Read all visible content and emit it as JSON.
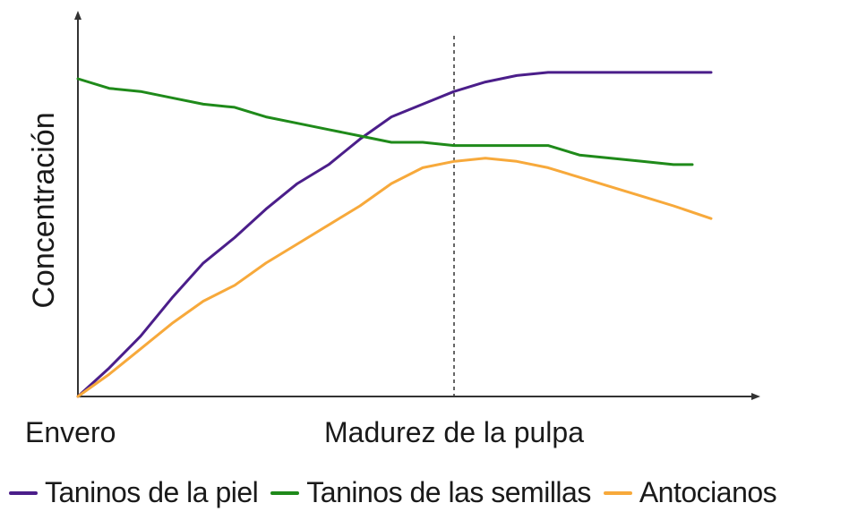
{
  "chart_data": {
    "type": "line",
    "title": "",
    "ylabel": "Concentración",
    "xlabel": "",
    "x_tick_labels": [
      {
        "x": 0,
        "label": "Envero"
      },
      {
        "x": 60,
        "label": "Madurez de la pulpa"
      }
    ],
    "marker_line_x": 60,
    "xlim": [
      0,
      105
    ],
    "ylim": [
      0,
      100
    ],
    "legend_position": "bottom",
    "grid": false,
    "series": [
      {
        "name": "Taninos de la piel",
        "color": "#4b1e8a",
        "points": [
          [
            0,
            0
          ],
          [
            5,
            9
          ],
          [
            10,
            19
          ],
          [
            15,
            31
          ],
          [
            20,
            42
          ],
          [
            25,
            50
          ],
          [
            30,
            59
          ],
          [
            35,
            67
          ],
          [
            40,
            73
          ],
          [
            45,
            81
          ],
          [
            50,
            88
          ],
          [
            55,
            92
          ],
          [
            60,
            96
          ],
          [
            65,
            99
          ],
          [
            70,
            101
          ],
          [
            75,
            102
          ],
          [
            80,
            102
          ],
          [
            85,
            102
          ],
          [
            90,
            102
          ],
          [
            95,
            102
          ],
          [
            101,
            102
          ]
        ]
      },
      {
        "name": "Taninos de las semillas",
        "color": "#1f8a1a",
        "points": [
          [
            0,
            100
          ],
          [
            5,
            97
          ],
          [
            10,
            96
          ],
          [
            15,
            94
          ],
          [
            20,
            92
          ],
          [
            25,
            91
          ],
          [
            30,
            88
          ],
          [
            35,
            86
          ],
          [
            40,
            84
          ],
          [
            45,
            82
          ],
          [
            50,
            80
          ],
          [
            55,
            80
          ],
          [
            60,
            79
          ],
          [
            65,
            79
          ],
          [
            70,
            79
          ],
          [
            75,
            79
          ],
          [
            80,
            76
          ],
          [
            85,
            75
          ],
          [
            90,
            74
          ],
          [
            95,
            73
          ],
          [
            98,
            73
          ]
        ]
      },
      {
        "name": "Antocianos",
        "color": "#f7a93b",
        "points": [
          [
            0,
            0
          ],
          [
            5,
            7
          ],
          [
            10,
            15
          ],
          [
            15,
            23
          ],
          [
            20,
            30
          ],
          [
            25,
            35
          ],
          [
            30,
            42
          ],
          [
            35,
            48
          ],
          [
            40,
            54
          ],
          [
            45,
            60
          ],
          [
            50,
            67
          ],
          [
            55,
            72
          ],
          [
            60,
            74
          ],
          [
            65,
            75
          ],
          [
            70,
            74
          ],
          [
            75,
            72
          ],
          [
            80,
            69
          ],
          [
            85,
            66
          ],
          [
            90,
            63
          ],
          [
            95,
            60
          ],
          [
            101,
            56
          ]
        ]
      }
    ]
  }
}
